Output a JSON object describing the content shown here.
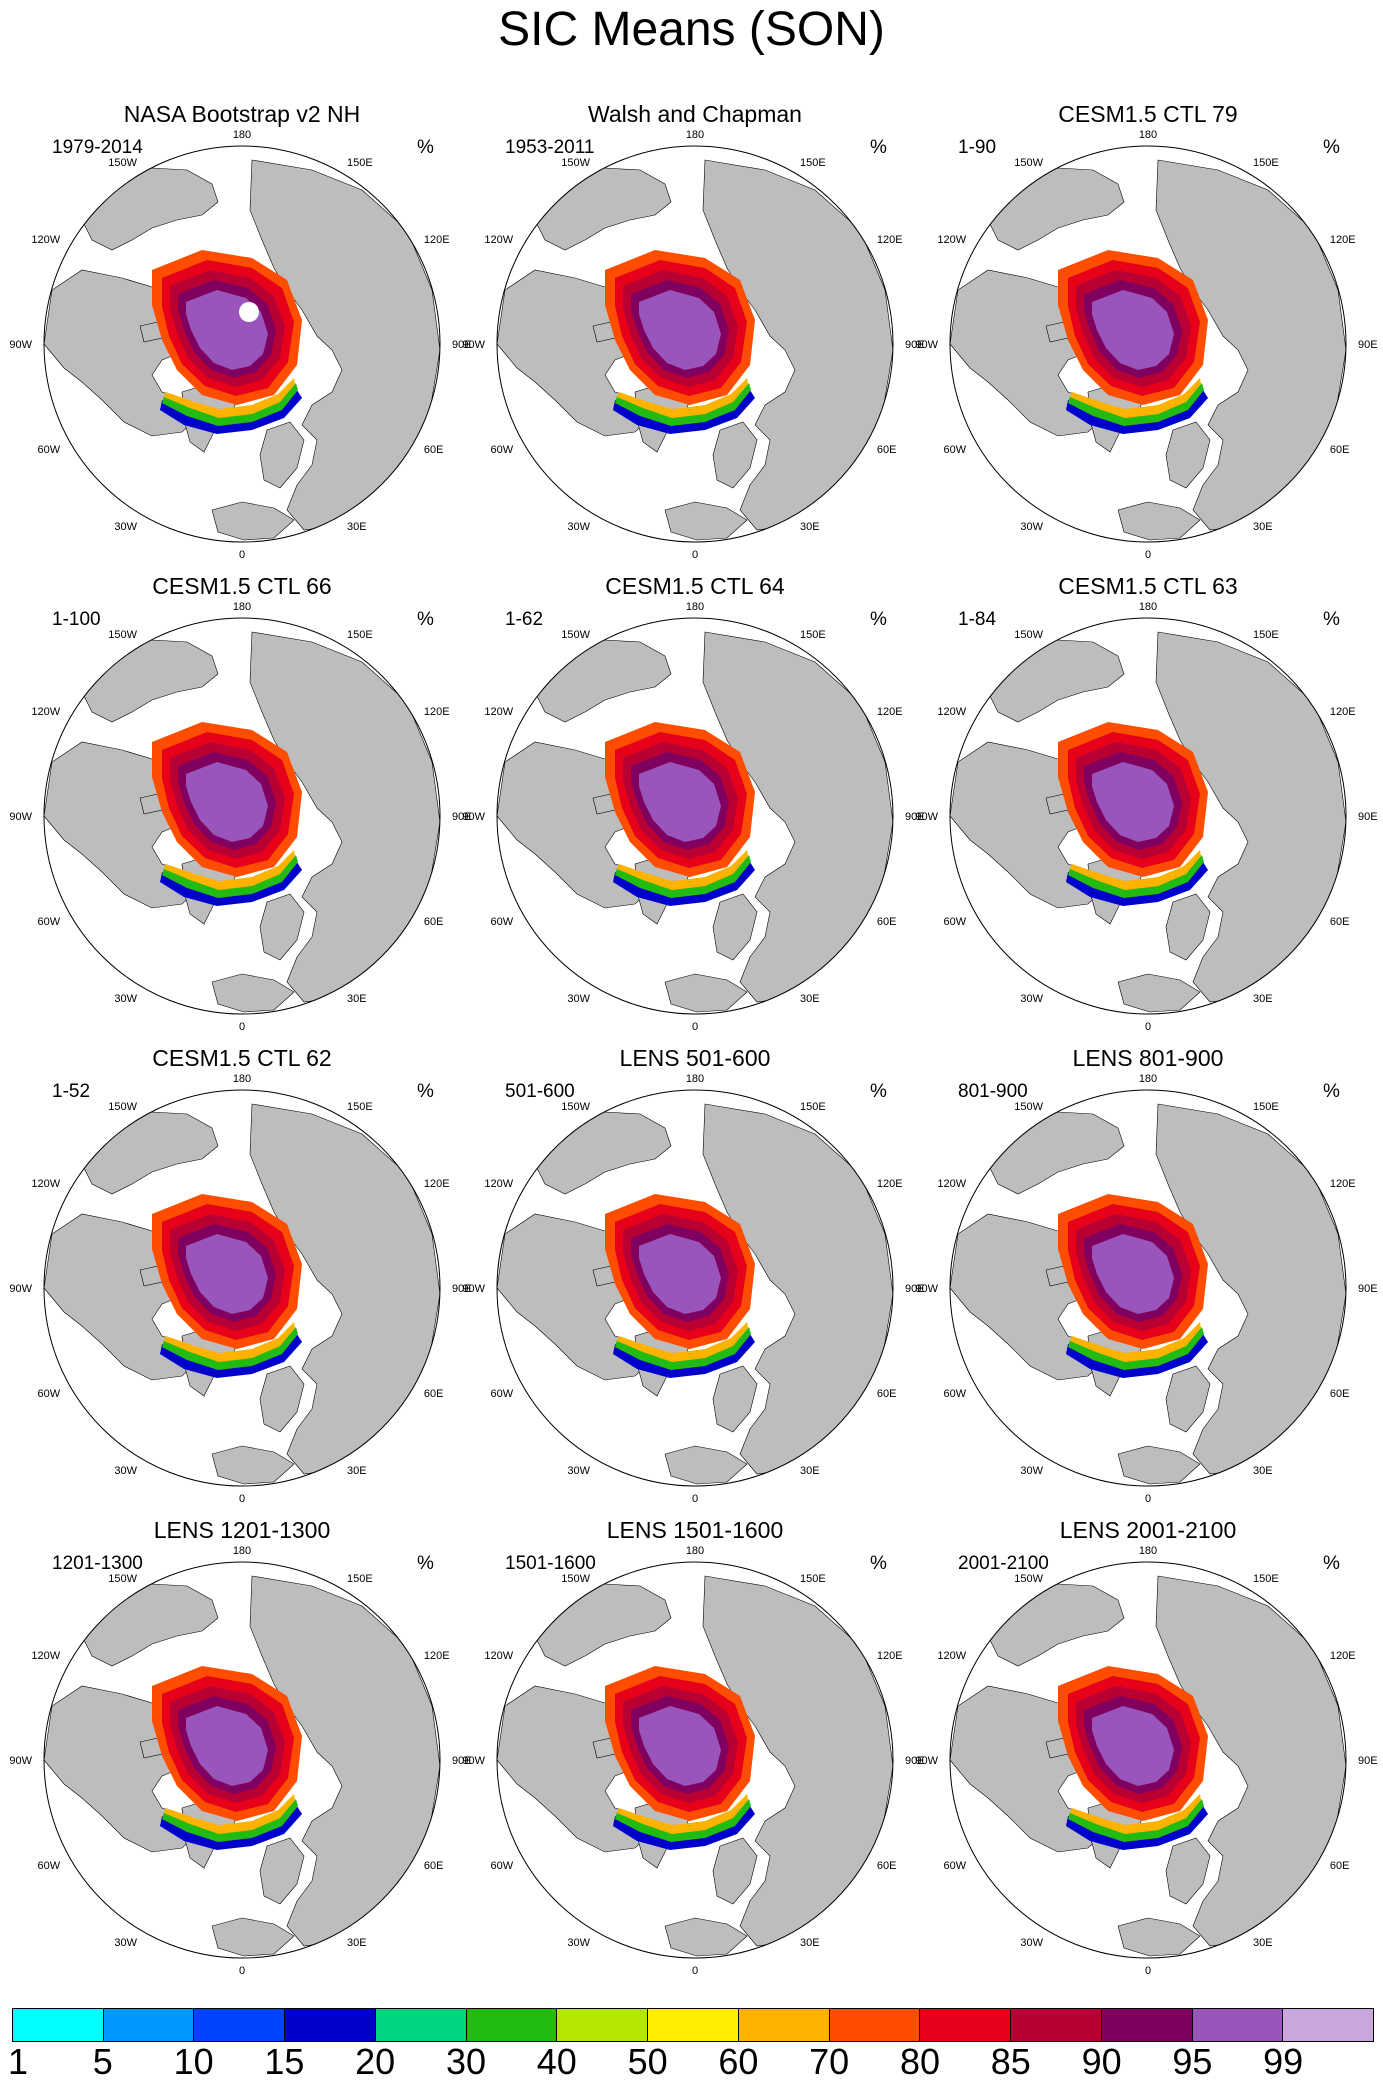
{
  "title": "SIC Means (SON)",
  "unit": "%",
  "longitude_labels": [
    "180",
    "150E",
    "120E",
    "90E",
    "60E",
    "30E",
    "0",
    "30W",
    "60W",
    "90W",
    "120W",
    "150W"
  ],
  "panels": [
    {
      "title": "NASA Bootstrap v2 NH",
      "period": "1979-2014",
      "unit": "%"
    },
    {
      "title": "Walsh and Chapman",
      "period": "1953-2011",
      "unit": "%"
    },
    {
      "title": "CESM1.5 CTL 79",
      "period": "1-90",
      "unit": "%"
    },
    {
      "title": "CESM1.5 CTL 66",
      "period": "1-100",
      "unit": "%"
    },
    {
      "title": "CESM1.5 CTL 64",
      "period": "1-62",
      "unit": "%"
    },
    {
      "title": "CESM1.5 CTL 63",
      "period": "1-84",
      "unit": "%"
    },
    {
      "title": "CESM1.5 CTL 62",
      "period": "1-52",
      "unit": "%"
    },
    {
      "title": "LENS 501-600",
      "period": "501-600",
      "unit": "%"
    },
    {
      "title": "LENS 801-900",
      "period": "801-900",
      "unit": "%"
    },
    {
      "title": "LENS 1201-1300",
      "period": "1201-1300",
      "unit": "%"
    },
    {
      "title": "LENS 1501-1600",
      "period": "1501-1600",
      "unit": "%"
    },
    {
      "title": "LENS 2001-2100",
      "period": "2001-2100",
      "unit": "%"
    }
  ],
  "colorbar": {
    "levels": [
      "1",
      "5",
      "10",
      "15",
      "20",
      "30",
      "40",
      "50",
      "60",
      "70",
      "80",
      "85",
      "90",
      "95",
      "99"
    ],
    "colors": [
      "#00ffff",
      "#0099ff",
      "#0044ff",
      "#0000cc",
      "#00d680",
      "#22bb11",
      "#b3e600",
      "#ffee00",
      "#ffb300",
      "#ff4d00",
      "#e60019",
      "#b80033",
      "#800060",
      "#9955bb",
      "#c8a8dc"
    ]
  },
  "colors": {
    "land": "#bdbdbd",
    "ocean": "#ffffff",
    "coast": "#000000"
  }
}
